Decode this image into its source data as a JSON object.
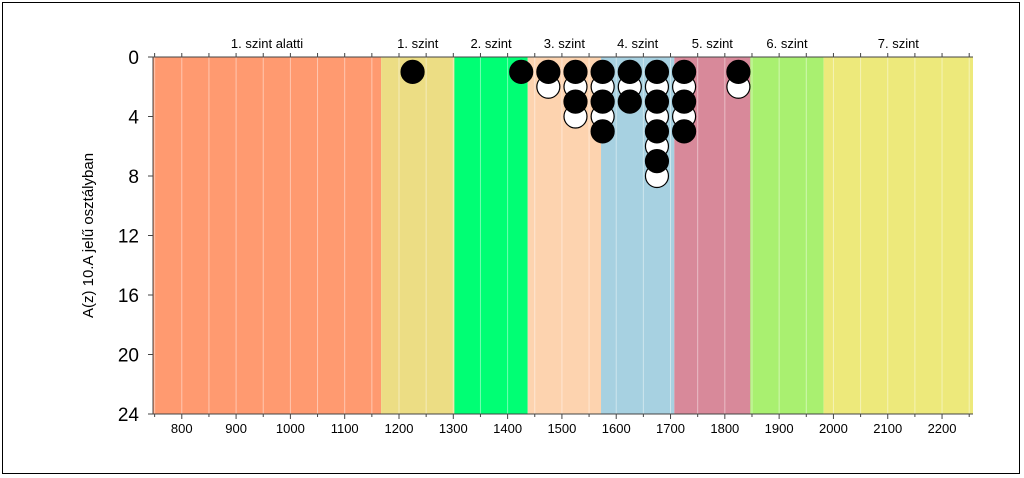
{
  "chart_data": {
    "type": "scatter",
    "ylabel": "A(z) 10.A jelű osztályban",
    "xlabel": "",
    "xlim": [
      747,
      2257
    ],
    "ylim": [
      0,
      24
    ],
    "y_inverted": true,
    "x_ticks": [
      "800",
      "900",
      "1000",
      "1100",
      "1200",
      "1300",
      "1400",
      "1500",
      "1600",
      "1700",
      "1800",
      "1900",
      "2000",
      "2100",
      "2200"
    ],
    "x_tick_values": [
      800,
      900,
      1000,
      1100,
      1200,
      1300,
      1400,
      1500,
      1600,
      1700,
      1800,
      1900,
      2000,
      2100,
      2200
    ],
    "y_ticks": [
      "0",
      "4",
      "8",
      "12",
      "16",
      "20",
      "24"
    ],
    "y_tick_values": [
      0,
      4,
      8,
      12,
      16,
      20,
      24
    ],
    "grid": true,
    "bands": [
      {
        "label": "1. szint alatti",
        "from": 747,
        "to": 1167,
        "color": "#FF9A70"
      },
      {
        "label": "1. szint",
        "from": 1167,
        "to": 1302,
        "color": "#ECDD84"
      },
      {
        "label": "2. szint",
        "from": 1302,
        "to": 1437,
        "color": "#00FF74"
      },
      {
        "label": "3. szint",
        "from": 1437,
        "to": 1572,
        "color": "#FDD3AF"
      },
      {
        "label": "4. szint",
        "from": 1572,
        "to": 1707,
        "color": "#A7D1E1"
      },
      {
        "label": "5. szint",
        "from": 1707,
        "to": 1847,
        "color": "#D8899A"
      },
      {
        "label": "6. szint",
        "from": 1847,
        "to": 1982,
        "color": "#A9F070"
      },
      {
        "label": "7. szint",
        "from": 1982,
        "to": 2257,
        "color": "#EDE97B"
      }
    ],
    "series": [
      {
        "fill": "#000000",
        "points": [
          {
            "x": 1225,
            "y": 1
          },
          {
            "x": 1425,
            "y": 1
          },
          {
            "x": 1475,
            "y": 1
          },
          {
            "x": 1525,
            "y": 1
          },
          {
            "x": 1525,
            "y": 3
          },
          {
            "x": 1575,
            "y": 1
          },
          {
            "x": 1575,
            "y": 3
          },
          {
            "x": 1575,
            "y": 5
          },
          {
            "x": 1625,
            "y": 1
          },
          {
            "x": 1625,
            "y": 3
          },
          {
            "x": 1675,
            "y": 1
          },
          {
            "x": 1675,
            "y": 3
          },
          {
            "x": 1675,
            "y": 5
          },
          {
            "x": 1675,
            "y": 7
          },
          {
            "x": 1725,
            "y": 1
          },
          {
            "x": 1725,
            "y": 3
          },
          {
            "x": 1725,
            "y": 5
          },
          {
            "x": 1825,
            "y": 1
          }
        ]
      },
      {
        "fill": "#FFFFFF",
        "points": [
          {
            "x": 1475,
            "y": 2
          },
          {
            "x": 1525,
            "y": 2
          },
          {
            "x": 1525,
            "y": 4
          },
          {
            "x": 1575,
            "y": 2
          },
          {
            "x": 1575,
            "y": 4
          },
          {
            "x": 1625,
            "y": 2
          },
          {
            "x": 1675,
            "y": 2
          },
          {
            "x": 1675,
            "y": 4
          },
          {
            "x": 1675,
            "y": 6
          },
          {
            "x": 1675,
            "y": 8
          },
          {
            "x": 1725,
            "y": 2
          },
          {
            "x": 1725,
            "y": 4
          },
          {
            "x": 1825,
            "y": 2
          }
        ]
      }
    ]
  }
}
